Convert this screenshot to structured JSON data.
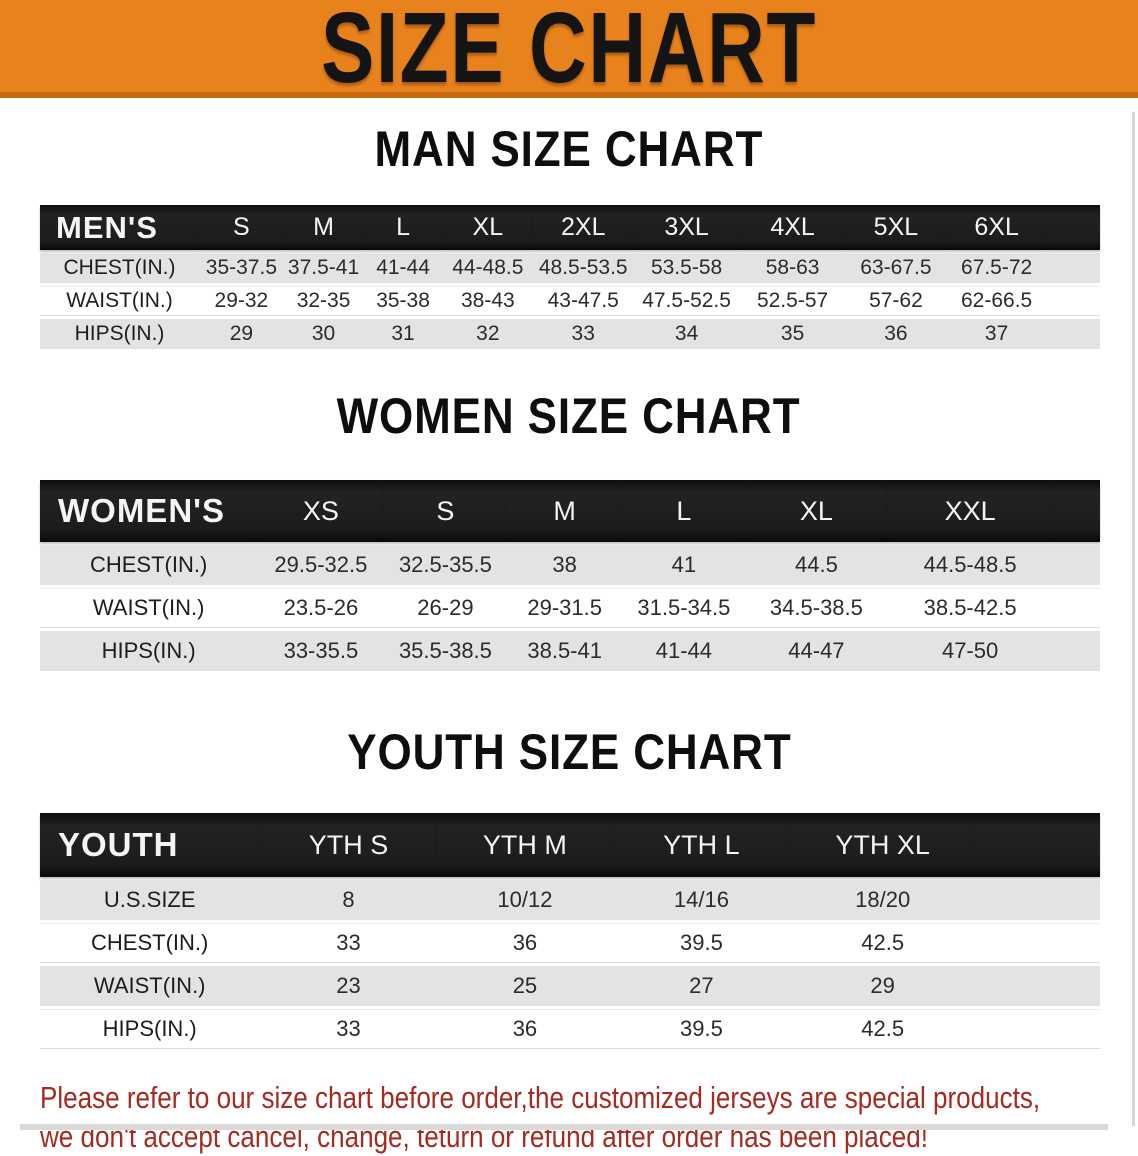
{
  "banner": {
    "title": "SIZE CHART"
  },
  "colors": {
    "banner_bg": "#E8821C",
    "banner_edge": "#C9690F",
    "table_header_bg": "#1A1A1A",
    "row_gray": "#E3E3E3",
    "disclaimer_red": "#A52A21"
  },
  "sections": {
    "men": {
      "heading": "MAN SIZE CHART"
    },
    "women": {
      "heading": "WOMEN SIZE CHART"
    },
    "youth": {
      "heading": "YOUTH SIZE CHART"
    }
  },
  "tables": {
    "men": {
      "label": "MEN'S",
      "columns": [
        "S",
        "M",
        "L",
        "XL",
        "2XL",
        "3XL",
        "4XL",
        "5XL",
        "6XL"
      ],
      "rows": [
        {
          "label": "CHEST(IN.)",
          "values": [
            "35-37.5",
            "37.5-41",
            "41-44",
            "44-48.5",
            "48.5-53.5",
            "53.5-58",
            "58-63",
            "63-67.5",
            "67.5-72"
          ]
        },
        {
          "label": "WAIST(IN.)",
          "values": [
            "29-32",
            "32-35",
            "35-38",
            "38-43",
            "43-47.5",
            "47.5-52.5",
            "52.5-57",
            "57-62",
            "62-66.5"
          ]
        },
        {
          "label": "HIPS(IN.)",
          "values": [
            "29",
            "30",
            "31",
            "32",
            "33",
            "34",
            "35",
            "36",
            "37"
          ]
        }
      ]
    },
    "women": {
      "label": "WOMEN'S",
      "columns": [
        "XS",
        "S",
        "M",
        "L",
        "XL",
        "XXL"
      ],
      "rows": [
        {
          "label": "CHEST(IN.)",
          "values": [
            "29.5-32.5",
            "32.5-35.5",
            "38",
            "41",
            "44.5",
            "44.5-48.5"
          ]
        },
        {
          "label": "WAIST(IN.)",
          "values": [
            "23.5-26",
            "26-29",
            "29-31.5",
            "31.5-34.5",
            "34.5-38.5",
            "38.5-42.5"
          ]
        },
        {
          "label": "HIPS(IN.)",
          "values": [
            "33-35.5",
            "35.5-38.5",
            "38.5-41",
            "41-44",
            "44-47",
            "47-50"
          ]
        }
      ]
    },
    "youth": {
      "label": "YOUTH",
      "columns": [
        "YTH S",
        "YTH M",
        "YTH L",
        "YTH XL"
      ],
      "rows": [
        {
          "label": "U.S.SIZE",
          "values": [
            "8",
            "10/12",
            "14/16",
            "18/20"
          ]
        },
        {
          "label": "CHEST(IN.)",
          "values": [
            "33",
            "36",
            "39.5",
            "42.5"
          ]
        },
        {
          "label": "WAIST(IN.)",
          "values": [
            "23",
            "25",
            "27",
            "29"
          ]
        },
        {
          "label": "HIPS(IN.)",
          "values": [
            "33",
            "36",
            "39.5",
            "42.5"
          ]
        }
      ]
    }
  },
  "disclaimer": {
    "line1": "Please refer to our size chart before order,the customized jerseys are special products,",
    "line2": "we don't accept cancel, change, teturn or refund after order has been placed!"
  }
}
